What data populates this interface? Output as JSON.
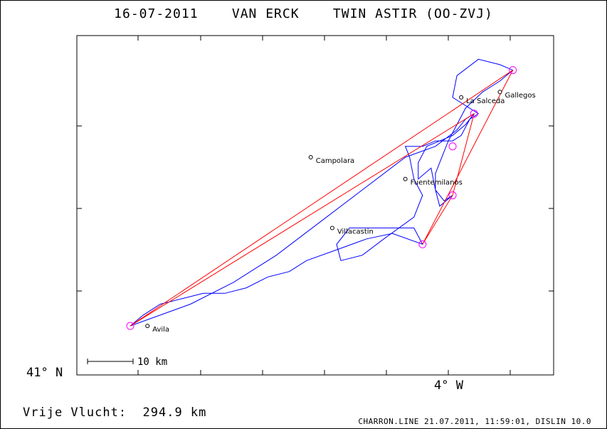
{
  "header": {
    "title": "16-07-2011    VAN ERCK    TWIN ASTIR (OO-ZVJ)"
  },
  "axes": {
    "lat_label": "41° N",
    "lon_label": "4° W"
  },
  "scale_bar": {
    "label": "10 km"
  },
  "places": [
    {
      "name": "Avila",
      "lon": -4.7,
      "lat": 41.09
    },
    {
      "name": "Campolara",
      "lon": -4.32,
      "lat": 41.4
    },
    {
      "name": "Villacastin",
      "lon": -4.27,
      "lat": 41.27
    },
    {
      "name": "Fuentemilanos",
      "lon": -4.1,
      "lat": 41.36
    },
    {
      "name": "La Salceda",
      "lon": -3.97,
      "lat": 41.51
    },
    {
      "name": "Gallegos",
      "lon": -3.88,
      "lat": 41.52
    }
  ],
  "turnpoints": [
    {
      "lon": -4.74,
      "lat": 41.09
    },
    {
      "lon": -3.85,
      "lat": 41.56
    },
    {
      "lon": -4.06,
      "lat": 41.24
    },
    {
      "lon": -3.99,
      "lat": 41.33
    },
    {
      "lon": -3.94,
      "lat": 41.48
    },
    {
      "lon": -3.99,
      "lat": 41.42
    }
  ],
  "task_route": [
    [
      -4.74,
      41.09
    ],
    [
      -3.85,
      41.56
    ],
    [
      -4.06,
      41.24
    ],
    [
      -3.99,
      41.33
    ],
    [
      -3.94,
      41.48
    ],
    [
      -4.74,
      41.09
    ]
  ],
  "flight_track": [
    [
      -4.74,
      41.09
    ],
    [
      -4.71,
      41.11
    ],
    [
      -4.67,
      41.13
    ],
    [
      -4.62,
      41.14
    ],
    [
      -4.57,
      41.15
    ],
    [
      -4.52,
      41.15
    ],
    [
      -4.47,
      41.16
    ],
    [
      -4.42,
      41.18
    ],
    [
      -4.37,
      41.19
    ],
    [
      -4.33,
      41.21
    ],
    [
      -4.26,
      41.23
    ],
    [
      -4.19,
      41.25
    ],
    [
      -4.13,
      41.26
    ],
    [
      -4.06,
      41.24
    ],
    [
      -4.08,
      41.27
    ],
    [
      -4.16,
      41.27
    ],
    [
      -4.23,
      41.27
    ],
    [
      -4.26,
      41.24
    ],
    [
      -4.25,
      41.21
    ],
    [
      -4.2,
      41.22
    ],
    [
      -4.15,
      41.25
    ],
    [
      -4.08,
      41.29
    ],
    [
      -4.06,
      41.33
    ],
    [
      -4.08,
      41.36
    ],
    [
      -4.09,
      41.4
    ],
    [
      -4.1,
      41.42
    ],
    [
      -4.06,
      41.42
    ],
    [
      -4.03,
      41.43
    ],
    [
      -3.99,
      41.43
    ],
    [
      -3.97,
      41.44
    ],
    [
      -3.95,
      41.47
    ],
    [
      -3.93,
      41.48
    ],
    [
      -3.97,
      41.5
    ],
    [
      -3.99,
      41.51
    ],
    [
      -3.98,
      41.55
    ],
    [
      -3.93,
      41.58
    ],
    [
      -3.88,
      41.57
    ],
    [
      -3.85,
      41.56
    ],
    [
      -3.88,
      41.54
    ],
    [
      -3.92,
      41.52
    ],
    [
      -3.96,
      41.49
    ],
    [
      -3.98,
      41.46
    ],
    [
      -4.0,
      41.43
    ],
    [
      -4.02,
      41.39
    ],
    [
      -4.03,
      41.37
    ],
    [
      -4.03,
      41.34
    ],
    [
      -4.01,
      41.32
    ],
    [
      -3.99,
      41.33
    ],
    [
      -4.02,
      41.31
    ],
    [
      -4.03,
      41.34
    ],
    [
      -4.04,
      41.38
    ],
    [
      -4.07,
      41.36
    ],
    [
      -4.07,
      41.39
    ],
    [
      -4.05,
      41.42
    ],
    [
      -4.02,
      41.43
    ],
    [
      -3.99,
      41.44
    ],
    [
      -3.96,
      41.46
    ],
    [
      -3.94,
      41.48
    ],
    [
      -3.96,
      41.47
    ],
    [
      -3.98,
      41.45
    ],
    [
      -4.03,
      41.42
    ],
    [
      -4.1,
      41.4
    ],
    [
      -4.2,
      41.34
    ],
    [
      -4.3,
      41.28
    ],
    [
      -4.4,
      41.22
    ],
    [
      -4.5,
      41.17
    ],
    [
      -4.6,
      41.13
    ],
    [
      -4.74,
      41.09
    ]
  ]
}
